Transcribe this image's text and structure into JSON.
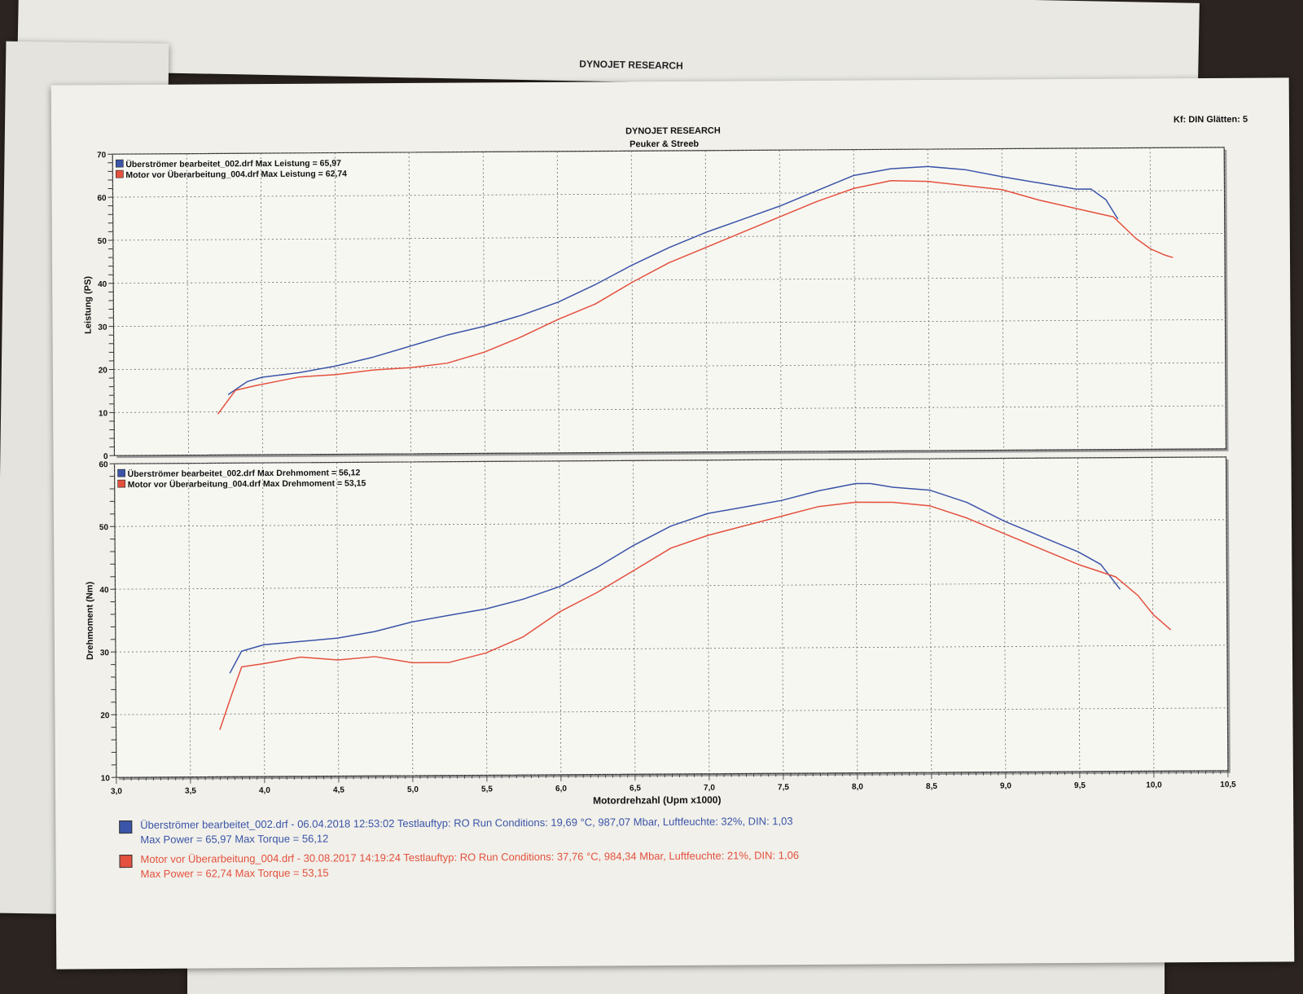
{
  "colors": {
    "blue": "#3b55a8",
    "red": "#e4513e"
  },
  "header": {
    "title": "DYNOJET RESEARCH",
    "subtitle": "Peuker & Streeb",
    "settings": "Kf: DIN  Glätten: 5"
  },
  "back_sheet": {
    "title": "DYNOJET RESEARCH"
  },
  "chart_data": [
    {
      "type": "line",
      "ylabel": "Leistung (PS)",
      "xlabel": "Motordrehzahl (Upm x1000)",
      "xlim": [
        3.0,
        10.5
      ],
      "ylim": [
        0,
        70
      ],
      "xticks": [
        "3,0",
        "3,5",
        "4,0",
        "4,5",
        "5,0",
        "5,5",
        "6,0",
        "6,5",
        "7,0",
        "7,5",
        "8,0",
        "8,5",
        "9,0",
        "9,5",
        "10,0",
        "10,5"
      ],
      "yticks": [
        "0",
        "10",
        "20",
        "30",
        "40",
        "50",
        "60",
        "70"
      ],
      "grid": true,
      "legend_position": "top-left",
      "legend": [
        "Überströmer bearbeitet_002.drf Max Leistung = 65,97",
        "Motor vor Überarbeitung_004.drf Max Leistung = 62,74"
      ],
      "series": [
        {
          "name": "Überströmer bearbeitet_002.drf",
          "color": "#3b55a8",
          "x": [
            3.77,
            3.9,
            4.0,
            4.25,
            4.5,
            4.75,
            5.0,
            5.25,
            5.5,
            5.75,
            6.0,
            6.25,
            6.5,
            6.75,
            7.0,
            7.25,
            7.5,
            7.75,
            8.0,
            8.25,
            8.5,
            8.75,
            9.0,
            9.25,
            9.5,
            9.6,
            9.7,
            9.78
          ],
          "y": [
            14,
            17,
            18,
            19,
            20.5,
            22.5,
            25,
            27.5,
            29.5,
            32,
            35,
            39,
            43.5,
            47.5,
            51,
            54,
            57,
            60.5,
            64,
            65.5,
            65.97,
            65.2,
            63.5,
            62,
            60.5,
            60.5,
            58,
            53.5
          ]
        },
        {
          "name": "Motor vor Überarbeitung_004.drf",
          "color": "#e4513e",
          "x": [
            3.7,
            3.82,
            3.95,
            4.1,
            4.25,
            4.5,
            4.75,
            5.0,
            5.25,
            5.5,
            5.75,
            6.0,
            6.25,
            6.5,
            6.75,
            7.0,
            7.25,
            7.5,
            7.75,
            8.0,
            8.25,
            8.5,
            8.75,
            9.0,
            9.25,
            9.5,
            9.75,
            9.9,
            10.0,
            10.1,
            10.15
          ],
          "y": [
            9.5,
            15,
            16,
            17,
            18,
            18.5,
            19.5,
            20,
            21,
            23.5,
            27,
            31,
            34.5,
            39.5,
            44,
            47.5,
            51,
            54.5,
            58,
            61,
            62.74,
            62.5,
            61.5,
            60.5,
            58,
            56,
            54,
            49,
            46.5,
            45,
            44.5
          ]
        }
      ]
    },
    {
      "type": "line",
      "ylabel": "Drehmoment (Nm)",
      "xlabel": "Motordrehzahl (Upm x1000)",
      "xlim": [
        3.0,
        10.5
      ],
      "ylim": [
        10,
        60
      ],
      "yticks": [
        "10",
        "20",
        "30",
        "40",
        "50",
        "60"
      ],
      "grid": true,
      "legend_position": "top-left",
      "legend": [
        "Überströmer bearbeitet_002.drf Max Drehmoment = 56,12",
        "Motor vor Überarbeitung_004.drf Max Drehmoment = 53,15"
      ],
      "series": [
        {
          "name": "Überströmer bearbeitet_002.drf",
          "color": "#3b55a8",
          "x": [
            3.77,
            3.85,
            4.0,
            4.25,
            4.5,
            4.75,
            5.0,
            5.25,
            5.5,
            5.75,
            6.0,
            6.25,
            6.5,
            6.75,
            7.0,
            7.25,
            7.5,
            7.75,
            8.0,
            8.1,
            8.25,
            8.5,
            8.75,
            9.0,
            9.25,
            9.5,
            9.65,
            9.78
          ],
          "y": [
            26.5,
            30,
            31,
            31.5,
            32,
            33,
            34.5,
            35.5,
            36.5,
            38,
            40,
            43,
            46.5,
            49.5,
            51.5,
            52.5,
            53.5,
            55,
            56.12,
            56.1,
            55.5,
            55,
            53,
            50,
            47.5,
            45,
            43,
            39
          ]
        },
        {
          "name": "Motor vor Überarbeitung_004.drf",
          "color": "#e4513e",
          "x": [
            3.7,
            3.78,
            3.85,
            4.0,
            4.25,
            4.5,
            4.75,
            5.0,
            5.25,
            5.5,
            5.75,
            6.0,
            6.25,
            6.5,
            6.75,
            7.0,
            7.25,
            7.5,
            7.75,
            8.0,
            8.25,
            8.5,
            8.75,
            9.0,
            9.25,
            9.5,
            9.75,
            9.9,
            10.0,
            10.12
          ],
          "y": [
            17.5,
            23,
            27.5,
            28,
            29,
            28.5,
            29,
            28,
            28,
            29.5,
            32,
            36,
            39,
            42.5,
            46,
            48,
            49.5,
            51,
            52.5,
            53.15,
            53.1,
            52.5,
            50.5,
            48,
            45.5,
            43,
            41,
            38,
            35,
            32.5
          ]
        }
      ]
    }
  ],
  "x_axis_label": "Motordrehzahl (Upm x1000)",
  "runs": [
    {
      "line1": "Überströmer bearbeitet_002.drf - 06.04.2018 12:53:02  Testlauftyp: RO  Run Conditions: 19,69 °C, 987,07 Mbar,  Luftfeuchte: 32%, DIN: 1,03",
      "line2": "Max Power = 65,97  Max Torque = 56,12",
      "color": "#3b55a8"
    },
    {
      "line1": "Motor vor Überarbeitung_004.drf - 30.08.2017 14:19:24  Testlauftyp: RO  Run Conditions: 37,76 °C, 984,34 Mbar,  Luftfeuchte: 21%, DIN: 1,06",
      "line2": "Max Power = 62,74  Max Torque = 53,15",
      "color": "#e4513e"
    }
  ]
}
